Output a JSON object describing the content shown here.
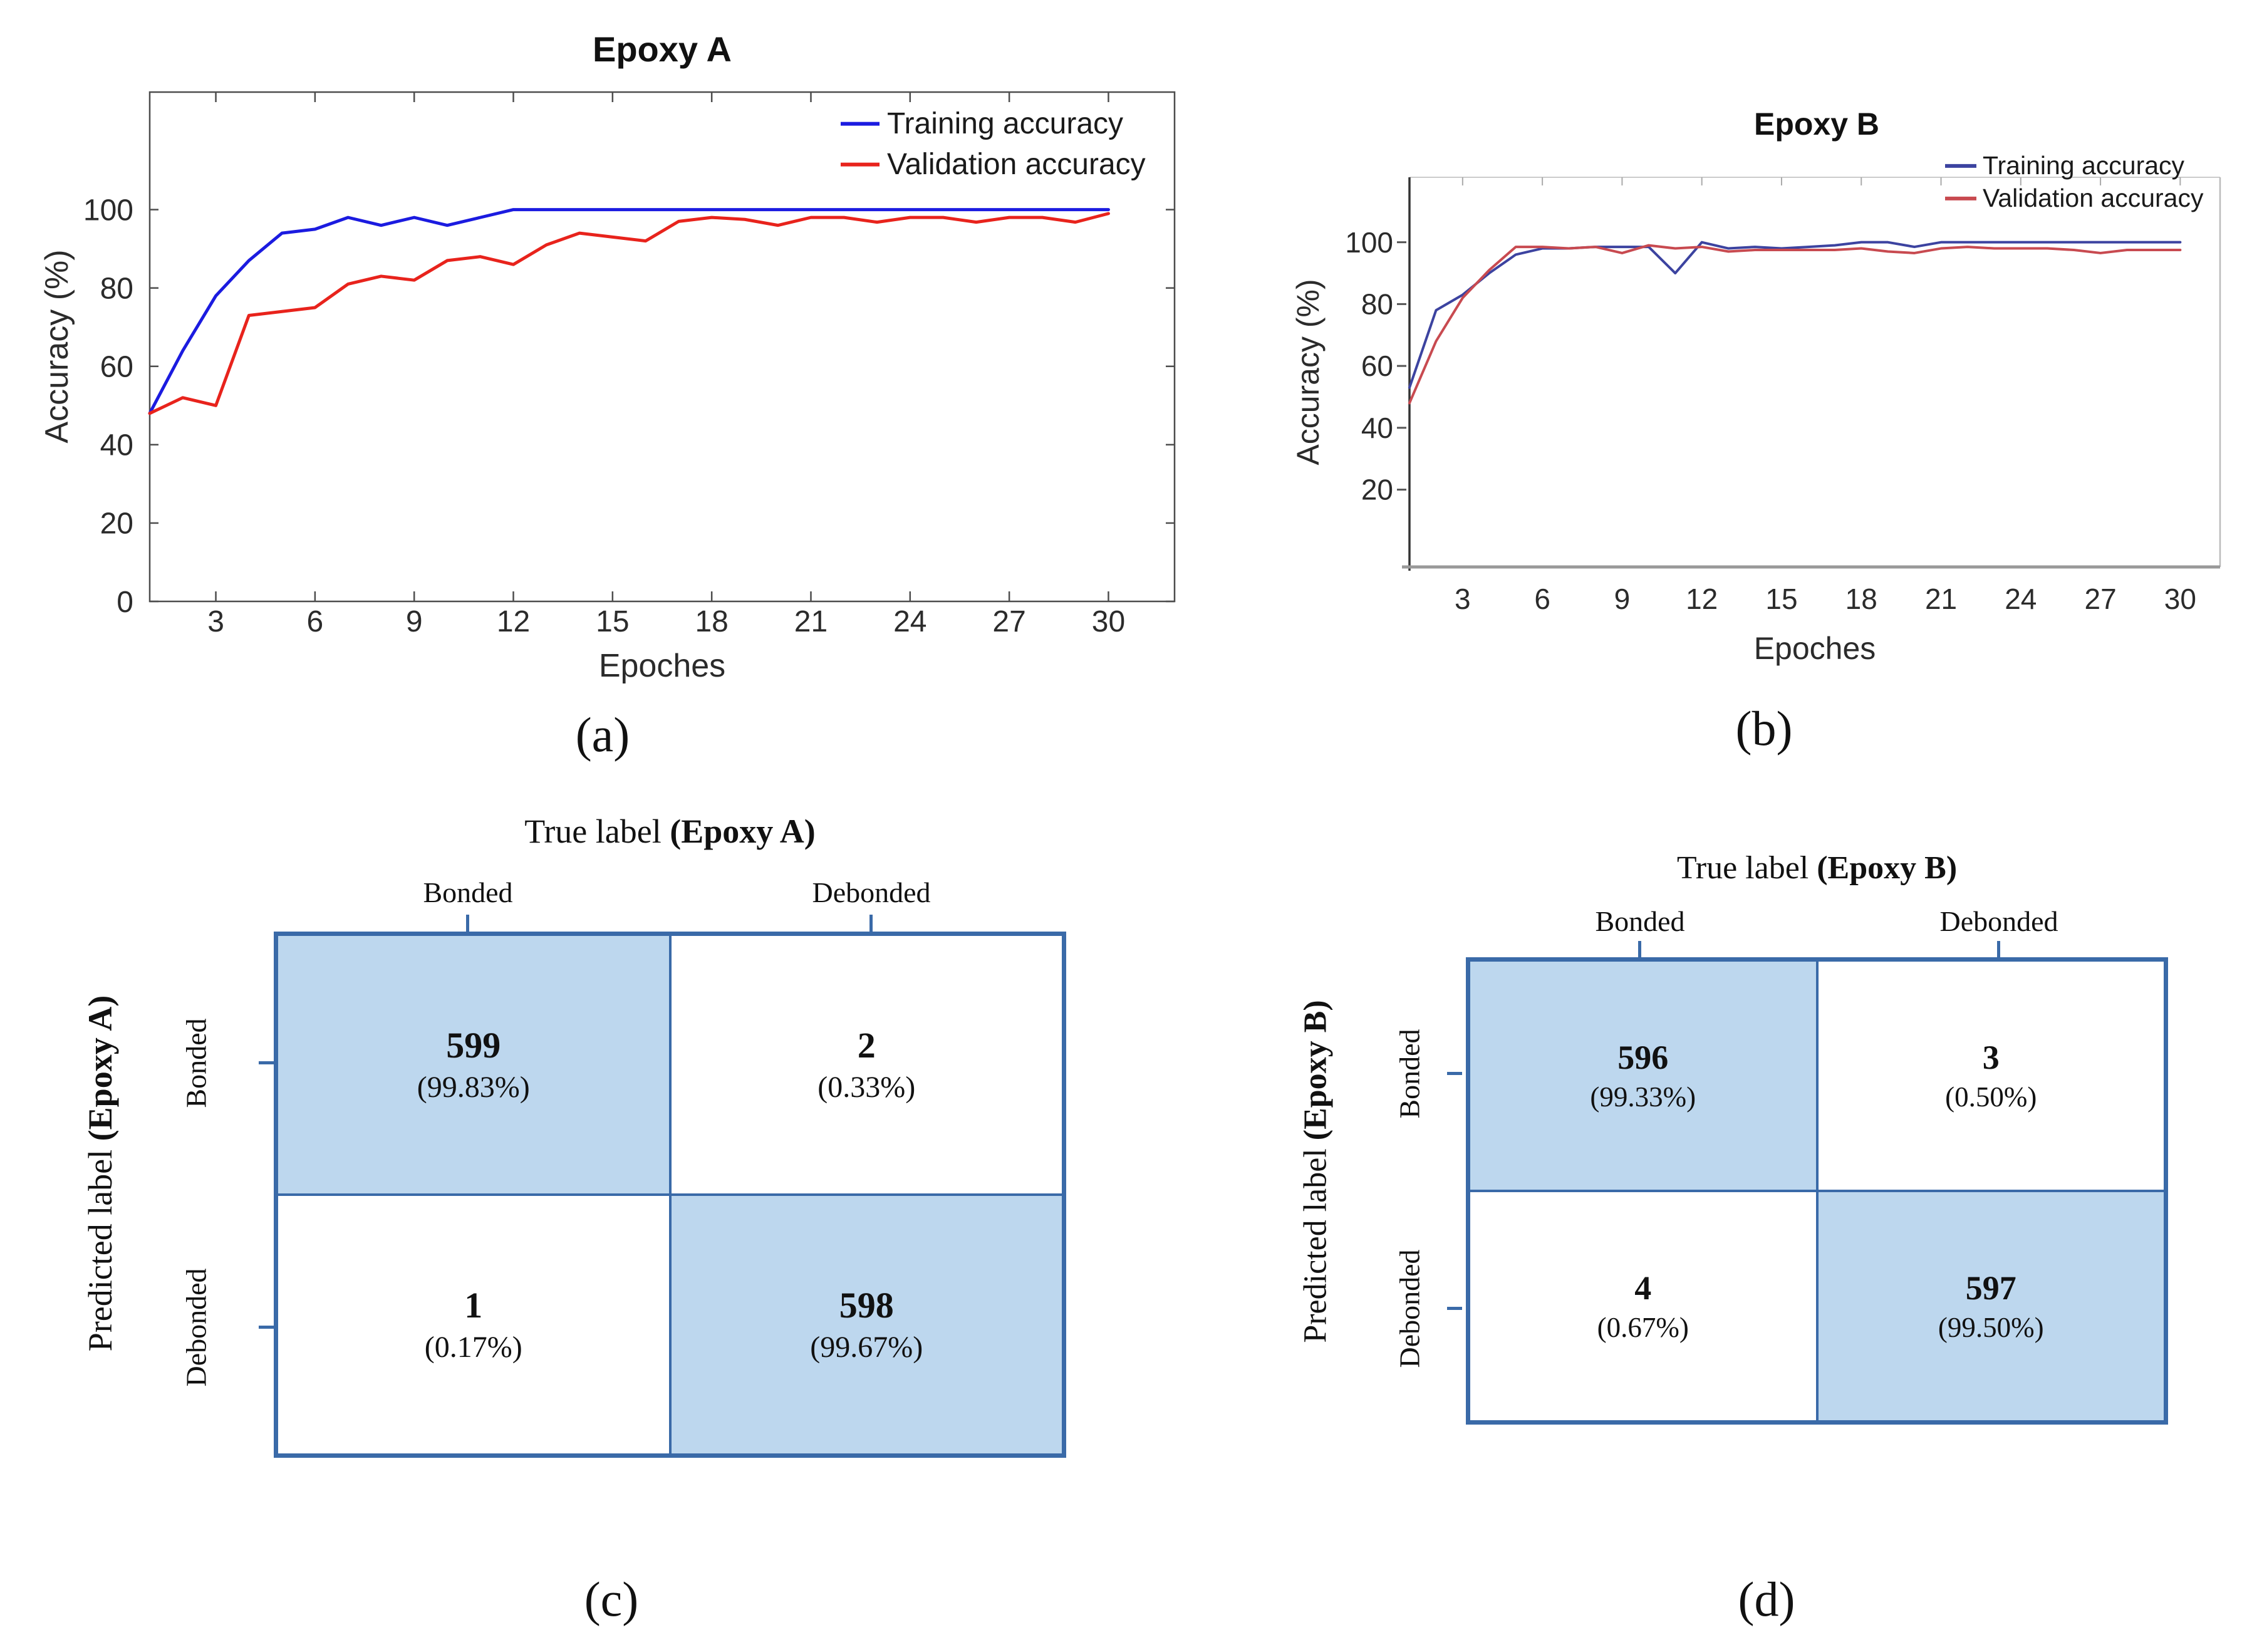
{
  "figure": {
    "captions": {
      "a": "(a)",
      "b": "(b)",
      "c": "(c)",
      "d": "(d)"
    }
  },
  "chart_data": [
    {
      "type": "line",
      "id": "epoxy-a",
      "title": "Epoxy A",
      "xlabel": "Epoches",
      "ylabel": "Accuracy (%)",
      "x": [
        1,
        2,
        3,
        4,
        5,
        6,
        7,
        8,
        9,
        10,
        11,
        12,
        13,
        14,
        15,
        16,
        17,
        18,
        19,
        20,
        21,
        22,
        23,
        24,
        25,
        26,
        27,
        28,
        29,
        30
      ],
      "series": [
        {
          "name": "Training accuracy",
          "color": "#1b1be0",
          "values": [
            48,
            64,
            78,
            87,
            94,
            95,
            98,
            96,
            98,
            96,
            98,
            100,
            100,
            100,
            100,
            100,
            100,
            100,
            100,
            100,
            100,
            100,
            100,
            100,
            100,
            100,
            100,
            100,
            100,
            100
          ]
        },
        {
          "name": "Validation accuracy",
          "color": "#e8231c",
          "values": [
            48,
            52,
            50,
            73,
            74,
            75,
            81,
            83,
            82,
            87,
            88,
            86,
            91,
            94,
            93,
            92,
            97,
            98,
            97.5,
            96,
            98,
            98,
            96.8,
            98,
            98,
            96.8,
            98,
            98,
            96.8,
            99
          ]
        }
      ],
      "xticks": [
        3,
        6,
        9,
        12,
        15,
        18,
        21,
        24,
        27,
        30
      ],
      "yticks": [
        0,
        20,
        40,
        60,
        80,
        100
      ],
      "xlim": [
        1,
        32
      ],
      "ylim": [
        0,
        130
      ],
      "legend_position": "top-right",
      "grid": false
    },
    {
      "type": "line",
      "id": "epoxy-b",
      "title": "Epoxy B",
      "xlabel": "Epoches",
      "ylabel": "Accuracy (%)",
      "x": [
        1,
        2,
        3,
        4,
        5,
        6,
        7,
        8,
        9,
        10,
        11,
        12,
        13,
        14,
        15,
        16,
        17,
        18,
        19,
        20,
        21,
        22,
        23,
        24,
        25,
        26,
        27,
        28,
        29,
        30
      ],
      "series": [
        {
          "name": "Training accuracy",
          "color": "#3c43a0",
          "values": [
            53,
            78,
            83,
            90,
            96,
            98,
            98,
            98.5,
            98.5,
            98.5,
            90,
            100,
            98,
            98.5,
            98,
            98.5,
            99,
            100,
            100,
            98.5,
            100,
            100,
            100,
            100,
            100,
            100,
            100,
            100,
            100,
            100
          ]
        },
        {
          "name": "Validation accuracy",
          "color": "#c84a50",
          "values": [
            48,
            68,
            82,
            91,
            98.5,
            98.5,
            98,
            98.5,
            96.5,
            99,
            98,
            98.5,
            97,
            97.5,
            97.5,
            97.5,
            97.5,
            98,
            97,
            96.5,
            98,
            98.5,
            98,
            98,
            98,
            97.5,
            96.5,
            97.5,
            97.5,
            97.5
          ]
        }
      ],
      "xticks": [
        3,
        6,
        9,
        12,
        15,
        18,
        21,
        24,
        27,
        30
      ],
      "yticks": [
        20,
        40,
        60,
        80,
        100
      ],
      "xlim": [
        1,
        31.5
      ],
      "ylim": [
        -5,
        121
      ],
      "legend_position": "top-right",
      "grid": false
    }
  ],
  "matrices": [
    {
      "id": "epoxy-a",
      "col_axis": {
        "prefix": "True label ",
        "bold": "(Epoxy A)"
      },
      "row_axis": {
        "prefix": "Predicted label ",
        "bold": "(Epoxy A)"
      },
      "col_labels": [
        "Bonded",
        "Debonded"
      ],
      "row_labels": [
        "Bonded",
        "Debonded"
      ],
      "cells": [
        [
          {
            "count": "599",
            "pct": "(99.83%)",
            "highlight": true
          },
          {
            "count": "2",
            "pct": "(0.33%)",
            "highlight": false
          }
        ],
        [
          {
            "count": "1",
            "pct": "(0.17%)",
            "highlight": false
          },
          {
            "count": "598",
            "pct": "(99.67%)",
            "highlight": true
          }
        ]
      ],
      "caption": "(c)"
    },
    {
      "id": "epoxy-b",
      "col_axis": {
        "prefix": "True label ",
        "bold": "(Epoxy B)"
      },
      "row_axis": {
        "prefix": "Predicted label ",
        "bold": "(Epoxy B)"
      },
      "col_labels": [
        "Bonded",
        "Debonded"
      ],
      "row_labels": [
        "Bonded",
        "Debonded"
      ],
      "cells": [
        [
          {
            "count": "596",
            "pct": "(99.33%)",
            "highlight": true
          },
          {
            "count": "3",
            "pct": "(0.50%)",
            "highlight": false
          }
        ],
        [
          {
            "count": "4",
            "pct": "(0.67%)",
            "highlight": false
          },
          {
            "count": "597",
            "pct": "(99.50%)",
            "highlight": true
          }
        ]
      ],
      "caption": "(d)"
    }
  ],
  "colors": {
    "matrix_fill": "#bdd7ee",
    "matrix_border": "#3a6aa8"
  }
}
